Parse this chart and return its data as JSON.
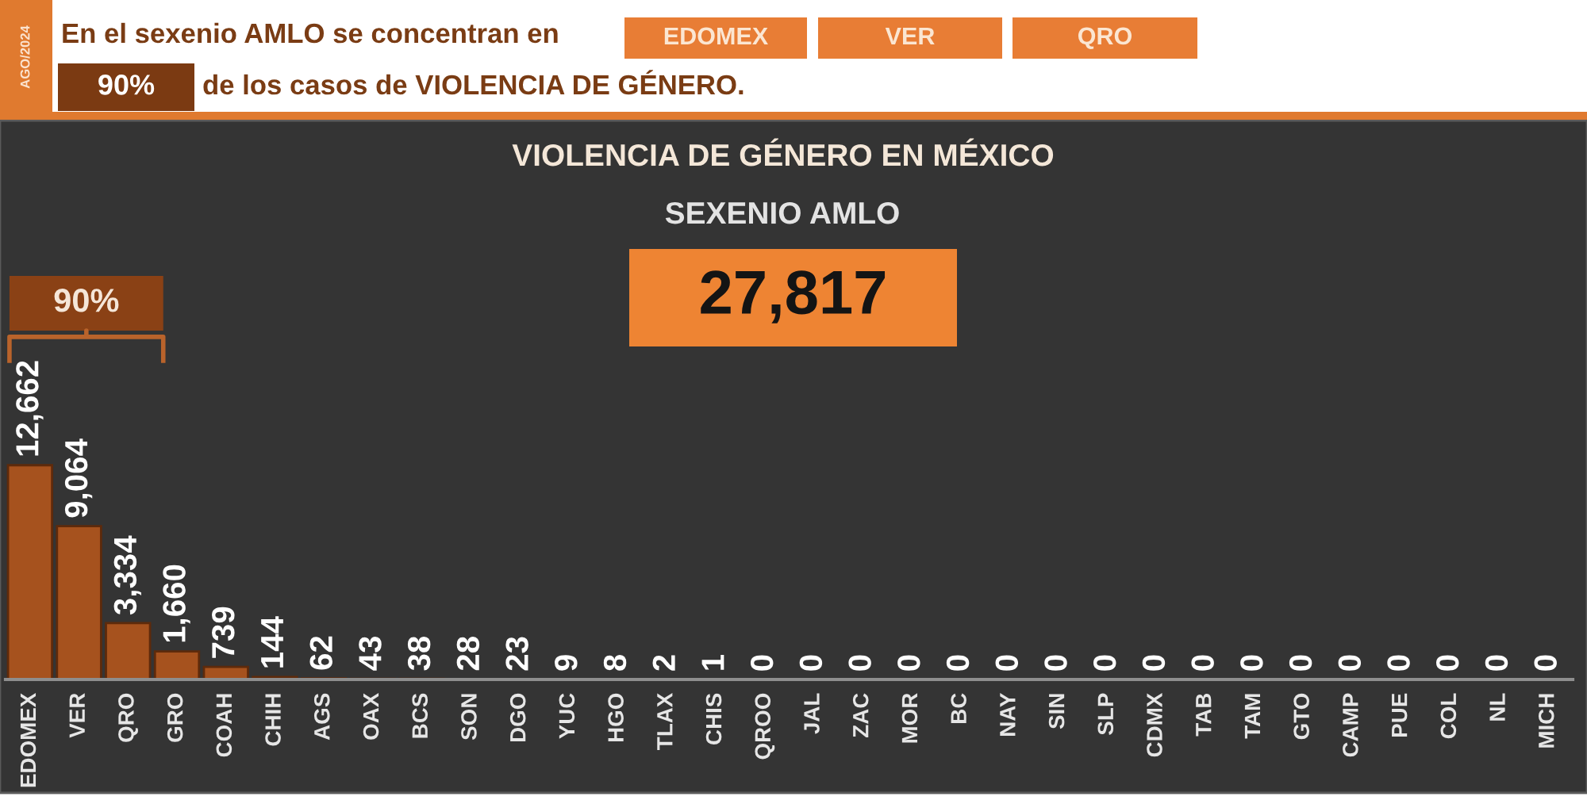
{
  "chart_data": {
    "type": "bar",
    "title": "VIOLENCIA DE GÉNERO EN MÉXICO",
    "subtitle": "SEXENIO AMLO",
    "categories": [
      "EDOMEX",
      "VER",
      "QRO",
      "GRO",
      "COAH",
      "CHIH",
      "AGS",
      "OAX",
      "BCS",
      "SON",
      "DGO",
      "YUC",
      "HGO",
      "TLAX",
      "CHIS",
      "QROO",
      "JAL",
      "ZAC",
      "MOR",
      "BC",
      "NAY",
      "SIN",
      "SLP",
      "CDMX",
      "TAB",
      "TAM",
      "GTO",
      "CAMP",
      "PUE",
      "COL",
      "NL",
      "MICH"
    ],
    "values": [
      12662,
      9064,
      3334,
      1660,
      739,
      144,
      62,
      43,
      38,
      28,
      23,
      9,
      8,
      2,
      1,
      0,
      0,
      0,
      0,
      0,
      0,
      0,
      0,
      0,
      0,
      0,
      0,
      0,
      0,
      0,
      0,
      0
    ],
    "value_labels": [
      "12,662",
      "9,064",
      "3,334",
      "1,660",
      "739",
      "144",
      "62",
      "43",
      "38",
      "28",
      "23",
      "9",
      "8",
      "2",
      "1",
      "0",
      "0",
      "0",
      "0",
      "0",
      "0",
      "0",
      "0",
      "0",
      "0",
      "0",
      "0",
      "0",
      "0",
      "0",
      "0",
      "0"
    ],
    "color": "#a6521e",
    "annotations": [
      "AGO/2024",
      "En el sexenio AMLO se concentran en",
      "EDOMEX",
      "VER",
      "QRO",
      "90%",
      "de los casos de VIOLENCIA DE GÉNERO.",
      "27,817",
      "90%"
    ]
  }
}
